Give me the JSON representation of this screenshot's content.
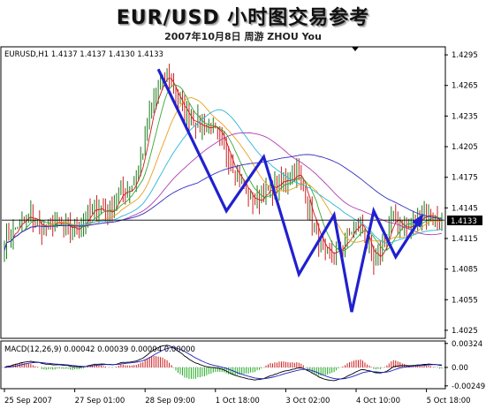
{
  "title": "EUR/USD 小时图交易参考",
  "subtitle": "2007年10月8日    周游 ZHOU You",
  "chart_data": [
    {
      "type": "candlestick",
      "header_text": "EURUSD,H1  1.4137 1.4137 1.4130 1.4133",
      "symbol": "EURUSD",
      "timeframe": "H1",
      "ohlc_last": {
        "open": 1.4137,
        "high": 1.4137,
        "low": 1.413,
        "close": 1.4133
      },
      "current_price": 1.4133,
      "current_price_label": "1.4133",
      "ylim": [
        1.4018,
        1.4302
      ],
      "y_ticks": [
        1.4295,
        1.4265,
        1.4235,
        1.4205,
        1.4175,
        1.4145,
        1.4115,
        1.4085,
        1.4055,
        1.4025
      ],
      "y_tick_labels": [
        "1.4295",
        "1.4265",
        "1.4235",
        "1.4205",
        "1.4175",
        "1.4145",
        "1.4115",
        "1.4085",
        "1.4055",
        "1.4025"
      ],
      "x_tick_labels": [
        "25 Sep 2007",
        "27 Sep 01:00",
        "28 Sep 09:00",
        "1 Oct 18:00",
        "3 Oct 02:00",
        "4 Oct 10:00",
        "5 Oct 18:00"
      ],
      "x_tick_index": [
        0,
        32,
        64,
        96,
        128,
        160,
        192
      ],
      "bar_count": 200,
      "close_path": [
        [
          0,
          1.411
        ],
        [
          6,
          1.4128
        ],
        [
          12,
          1.4136
        ],
        [
          18,
          1.4124
        ],
        [
          24,
          1.413
        ],
        [
          30,
          1.4122
        ],
        [
          36,
          1.4132
        ],
        [
          42,
          1.4146
        ],
        [
          48,
          1.414
        ],
        [
          52,
          1.4158
        ],
        [
          56,
          1.4162
        ],
        [
          60,
          1.4176
        ],
        [
          63,
          1.42
        ],
        [
          66,
          1.4236
        ],
        [
          70,
          1.4262
        ],
        [
          74,
          1.4276
        ],
        [
          78,
          1.4254
        ],
        [
          82,
          1.4236
        ],
        [
          86,
          1.4232
        ],
        [
          90,
          1.4224
        ],
        [
          94,
          1.4226
        ],
        [
          98,
          1.421
        ],
        [
          102,
          1.4196
        ],
        [
          106,
          1.4178
        ],
        [
          110,
          1.416
        ],
        [
          114,
          1.415
        ],
        [
          118,
          1.416
        ],
        [
          122,
          1.4164
        ],
        [
          126,
          1.417
        ],
        [
          130,
          1.4176
        ],
        [
          133,
          1.418
        ],
        [
          136,
          1.4164
        ],
        [
          139,
          1.414
        ],
        [
          142,
          1.4118
        ],
        [
          146,
          1.4096
        ],
        [
          150,
          1.41
        ],
        [
          154,
          1.4108
        ],
        [
          158,
          1.4122
        ],
        [
          162,
          1.4132
        ],
        [
          165,
          1.411
        ],
        [
          168,
          1.4088
        ],
        [
          171,
          1.41
        ],
        [
          174,
          1.4118
        ],
        [
          176,
          1.4134
        ],
        [
          180,
          1.413
        ],
        [
          183,
          1.4124
        ],
        [
          186,
          1.4128
        ],
        [
          190,
          1.414
        ],
        [
          194,
          1.4138
        ],
        [
          197,
          1.4134
        ],
        [
          199,
          1.4133
        ]
      ],
      "moving_averages": [
        {
          "color": "#d11a1a",
          "period": 5
        },
        {
          "color": "#33aa33",
          "period": 10
        },
        {
          "color": "#e8a020",
          "period": 20
        },
        {
          "color": "#29b6d8",
          "period": 34
        },
        {
          "color": "#b040b0",
          "period": 55
        },
        {
          "color": "#3030c0",
          "period": 89
        }
      ],
      "forecast_zigzag": [
        [
          1.4281,
          "start"
        ],
        [
          1.4142
        ],
        [
          1.4195
        ],
        [
          1.408
        ],
        [
          1.4138
        ],
        [
          1.4043
        ],
        [
          1.4142
        ],
        [
          1.4097
        ],
        [
          1.4137
        ]
      ],
      "forecast_zigzag_x": [
        70,
        101,
        118,
        134,
        150,
        158,
        168,
        178,
        190
      ],
      "forecast_color": "#2020d0"
    },
    {
      "type": "histogram",
      "header_text": "MACD(12,26,9) 0.00042 0.00039 0.00004 0.00000",
      "indicator": "MACD(12,26,9)",
      "values_shown": [
        0.00042,
        0.00039,
        4e-05,
        0.0
      ],
      "ylim": [
        -0.00275,
        0.00345
      ],
      "y_ticks": [
        0.00324,
        0.0,
        -0.00249
      ],
      "y_tick_labels": [
        "0.00324",
        "0.00",
        "-0.00249"
      ],
      "histogram_colors": {
        "up": "#d11a1a",
        "down": "#22aa22"
      },
      "macd_line_color": "#000000",
      "signal_line_color": "#2020c0"
    }
  ]
}
